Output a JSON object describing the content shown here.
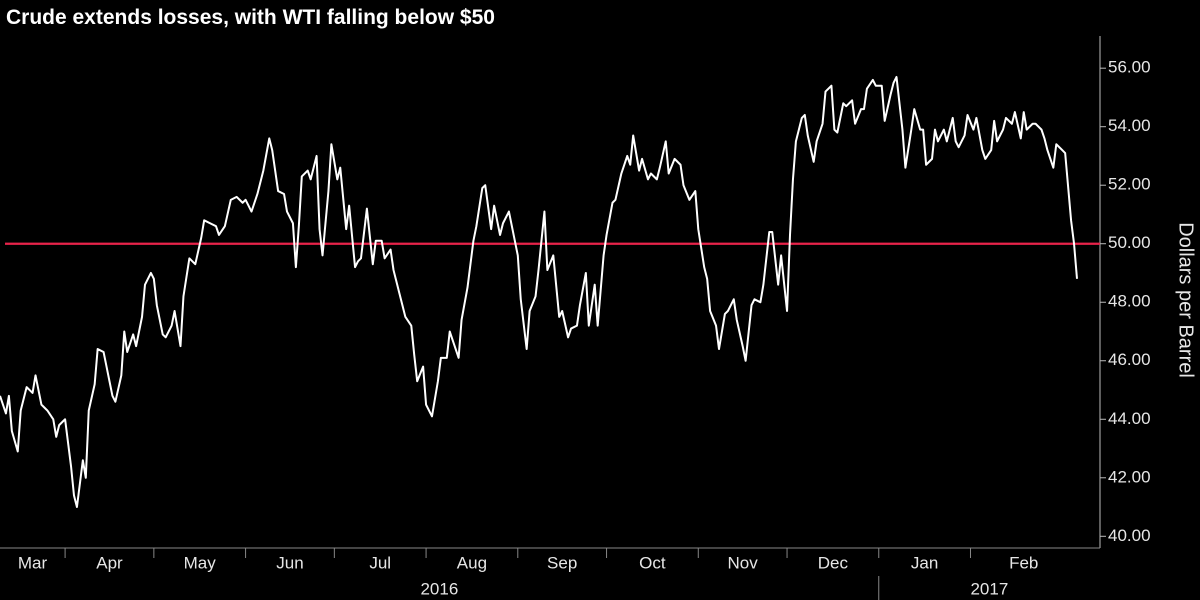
{
  "chart_data": {
    "type": "line",
    "title": "Crude extends losses, with WTI falling below $50",
    "y_axis_label": "Dollars per Barrel",
    "color": "#ffffff",
    "reference_line": {
      "value": 50,
      "color": "#e8234a"
    },
    "xlim": [
      9,
      373
    ],
    "xticks": [
      {
        "value": 0,
        "label": "Mar"
      },
      {
        "value": 31,
        "label": "Apr"
      },
      {
        "value": 61,
        "label": "May"
      },
      {
        "value": 92,
        "label": "Jun"
      },
      {
        "value": 122,
        "label": "Jul"
      },
      {
        "value": 153,
        "label": "Aug"
      },
      {
        "value": 184,
        "label": "Sep"
      },
      {
        "value": 214,
        "label": "Oct"
      },
      {
        "value": 245,
        "label": "Nov"
      },
      {
        "value": 275,
        "label": "Dec"
      },
      {
        "value": 306,
        "label": "Jan"
      },
      {
        "value": 337,
        "label": "Feb"
      }
    ],
    "years": [
      {
        "value": 0,
        "label": "2016"
      },
      {
        "value": 306,
        "label": "2017"
      }
    ],
    "ylim": [
      39.6,
      57.1
    ],
    "yticks": [
      {
        "value": 40,
        "label": "40.00"
      },
      {
        "value": 42,
        "label": "42.00"
      },
      {
        "value": 44,
        "label": "44.00"
      },
      {
        "value": 46,
        "label": "46.00"
      },
      {
        "value": 48,
        "label": "48.00"
      },
      {
        "value": 50,
        "label": "50.00"
      },
      {
        "value": 52,
        "label": "52.00"
      },
      {
        "value": 54,
        "label": "54.00"
      },
      {
        "value": 56,
        "label": "56.00"
      }
    ],
    "x": [
      9,
      11,
      12,
      13,
      15,
      16,
      18,
      20,
      21,
      23,
      25,
      27,
      28,
      29,
      31,
      33,
      34,
      35,
      37,
      38,
      39,
      41,
      42,
      44,
      45,
      47,
      48,
      50,
      51,
      52,
      54,
      55,
      57,
      58,
      60,
      61,
      62,
      64,
      65,
      67,
      68,
      70,
      71,
      73,
      75,
      77,
      78,
      80,
      82,
      83,
      85,
      87,
      89,
      91,
      92,
      94,
      96,
      98,
      100,
      101,
      103,
      105,
      106,
      108,
      109,
      110,
      111,
      113,
      114,
      116,
      117,
      118,
      120,
      121,
      123,
      124,
      126,
      127,
      129,
      130,
      131,
      133,
      135,
      136,
      138,
      139,
      141,
      142,
      144,
      146,
      148,
      149,
      150,
      152,
      153,
      155,
      157,
      158,
      160,
      161,
      162,
      164,
      165,
      167,
      169,
      170,
      172,
      173,
      175,
      176,
      178,
      179,
      181,
      182,
      184,
      185,
      187,
      188,
      190,
      191,
      193,
      194,
      196,
      198,
      199,
      201,
      202,
      204,
      205,
      207,
      208,
      210,
      211,
      213,
      214,
      216,
      217,
      219,
      221,
      222,
      223,
      225,
      226,
      228,
      229,
      231,
      232,
      234,
      235,
      237,
      239,
      240,
      242,
      244,
      245,
      247,
      248,
      249,
      251,
      252,
      254,
      255,
      257,
      258,
      260,
      261,
      263,
      264,
      266,
      267,
      269,
      270,
      272,
      273,
      275,
      276,
      277,
      278,
      280,
      281,
      282,
      284,
      285,
      287,
      288,
      290,
      291,
      292,
      294,
      295,
      297,
      298,
      300,
      301,
      302,
      304,
      305,
      307,
      308,
      310,
      311,
      312,
      314,
      315,
      317,
      318,
      320,
      321,
      322,
      324,
      325,
      326,
      328,
      329,
      331,
      332,
      333,
      335,
      336,
      338,
      339,
      341,
      342,
      344,
      345,
      346,
      348,
      349,
      351,
      352,
      354,
      355,
      356,
      358,
      359,
      361,
      362,
      363,
      365,
      366,
      368,
      369,
      371,
      372,
      373
    ],
    "values": [
      44.8,
      44.2,
      44.8,
      43.6,
      42.9,
      44.3,
      45.1,
      44.9,
      45.5,
      44.5,
      44.3,
      44.0,
      43.4,
      43.8,
      44.0,
      42.4,
      41.4,
      41.0,
      42.6,
      42.0,
      44.3,
      45.2,
      46.4,
      46.3,
      45.8,
      44.8,
      44.6,
      45.5,
      47.0,
      46.3,
      46.9,
      46.5,
      47.5,
      48.6,
      49.0,
      48.8,
      47.9,
      46.9,
      46.8,
      47.2,
      47.7,
      46.5,
      48.2,
      49.5,
      49.3,
      50.2,
      50.8,
      50.7,
      50.6,
      50.3,
      50.6,
      51.5,
      51.6,
      51.4,
      51.5,
      51.1,
      51.7,
      52.5,
      53.6,
      53.2,
      51.8,
      51.7,
      51.1,
      50.7,
      49.2,
      50.6,
      52.3,
      52.5,
      52.2,
      53.0,
      50.5,
      49.6,
      51.8,
      53.4,
      52.2,
      52.6,
      50.5,
      51.3,
      49.2,
      49.4,
      49.5,
      51.2,
      49.3,
      50.1,
      50.1,
      49.5,
      49.8,
      49.1,
      48.3,
      47.5,
      47.2,
      46.2,
      45.3,
      45.8,
      44.5,
      44.1,
      45.3,
      46.1,
      46.1,
      47.0,
      46.7,
      46.1,
      47.4,
      48.5,
      50.1,
      50.6,
      51.9,
      52.0,
      50.5,
      51.3,
      50.3,
      50.7,
      51.1,
      50.6,
      49.6,
      48.1,
      46.4,
      47.7,
      48.2,
      49.1,
      51.1,
      49.1,
      49.6,
      47.5,
      47.7,
      46.8,
      47.1,
      47.2,
      47.9,
      49.0,
      47.2,
      48.6,
      47.2,
      49.6,
      50.3,
      51.4,
      51.5,
      52.4,
      53.0,
      52.7,
      53.7,
      52.5,
      52.9,
      52.2,
      52.4,
      52.2,
      52.6,
      53.5,
      52.4,
      52.9,
      52.7,
      52.0,
      51.5,
      51.8,
      50.5,
      49.2,
      48.8,
      47.7,
      47.2,
      46.4,
      47.6,
      47.7,
      48.1,
      47.4,
      46.5,
      46.0,
      47.9,
      48.1,
      48.0,
      48.6,
      50.4,
      50.4,
      48.6,
      49.6,
      47.7,
      50.3,
      52.2,
      53.5,
      54.3,
      54.4,
      53.7,
      52.8,
      53.5,
      54.1,
      55.2,
      55.4,
      53.9,
      53.8,
      54.8,
      54.7,
      54.9,
      54.1,
      54.6,
      54.6,
      55.3,
      55.6,
      55.4,
      55.4,
      54.2,
      55.1,
      55.5,
      55.7,
      53.9,
      52.6,
      53.9,
      54.6,
      53.9,
      53.9,
      52.7,
      52.9,
      53.9,
      53.5,
      53.9,
      53.5,
      54.3,
      53.5,
      53.3,
      53.7,
      54.4,
      53.9,
      54.3,
      53.2,
      52.9,
      53.2,
      54.2,
      53.5,
      53.9,
      54.3,
      54.1,
      54.5,
      53.6,
      54.5,
      53.9,
      54.1,
      54.1,
      53.9,
      53.6,
      53.2,
      52.6,
      53.4,
      53.2,
      53.1,
      50.8,
      50.0,
      48.8
    ]
  }
}
